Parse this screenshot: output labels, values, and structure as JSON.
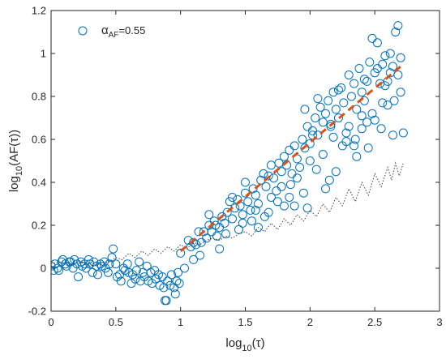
{
  "chart_data": {
    "type": "scatter",
    "xlabel": {
      "base": "log",
      "sub": "10",
      "paren": "(τ)"
    },
    "ylabel": {
      "base": "log",
      "sub": "10",
      "paren": "(AF(τ))"
    },
    "xlim": [
      0,
      3
    ],
    "ylim": [
      -0.2,
      1.2
    ],
    "xticks": [
      0,
      0.5,
      1,
      1.5,
      2,
      2.5,
      3
    ],
    "xtick_labels": [
      "0",
      "0.5",
      "1",
      "1.5",
      "2",
      "2.5",
      "3"
    ],
    "yticks": [
      -0.2,
      0,
      0.2,
      0.4,
      0.6,
      0.8,
      1,
      1.2
    ],
    "ytick_labels": [
      "-0.2",
      "0",
      "0.2",
      "0.4",
      "0.6",
      "0.8",
      "1",
      "1.2"
    ],
    "grid": false,
    "legend": {
      "position": "top-left",
      "entries": [
        {
          "symbol": "α",
          "sub": "AF",
          "text": "=0.55",
          "marker": "open-circle",
          "color": "#0072BD"
        }
      ]
    },
    "colors": {
      "markers": "#0072BD",
      "fit_line": "#D95319",
      "reference": "#404040",
      "axes": "#262626"
    },
    "series": [
      {
        "marker": "open-circle",
        "color": "#0072BD",
        "points": [
          [
            0.0,
            0.01
          ],
          [
            0.02,
            -0.01
          ],
          [
            0.03,
            0.02
          ],
          [
            0.05,
            0.0
          ],
          [
            0.06,
            -0.01
          ],
          [
            0.08,
            0.03
          ],
          [
            0.09,
            0.04
          ],
          [
            0.11,
            0.02
          ],
          [
            0.12,
            0.01
          ],
          [
            0.14,
            0.03
          ],
          [
            0.15,
            0.03
          ],
          [
            0.17,
            0.0
          ],
          [
            0.18,
            0.04
          ],
          [
            0.2,
            0.02
          ],
          [
            0.21,
            -0.04
          ],
          [
            0.23,
            0.03
          ],
          [
            0.24,
            0.01
          ],
          [
            0.26,
            0.02
          ],
          [
            0.27,
            0.0
          ],
          [
            0.29,
            0.04
          ],
          [
            0.3,
            0.02
          ],
          [
            0.32,
            -0.02
          ],
          [
            0.33,
            0.03
          ],
          [
            0.35,
            0.01
          ],
          [
            0.36,
            -0.03
          ],
          [
            0.38,
            0.02
          ],
          [
            0.39,
            0.01
          ],
          [
            0.41,
            0.03
          ],
          [
            0.42,
            0.0
          ],
          [
            0.44,
            -0.02
          ],
          [
            0.45,
            0.02
          ],
          [
            0.47,
            0.05
          ],
          [
            0.48,
            0.09
          ],
          [
            0.5,
            0.02
          ],
          [
            0.51,
            -0.04
          ],
          [
            0.53,
            -0.03
          ],
          [
            0.54,
            -0.06
          ],
          [
            0.56,
            0.0
          ],
          [
            0.57,
            -0.01
          ],
          [
            0.59,
            0.02
          ],
          [
            0.6,
            -0.02
          ],
          [
            0.62,
            -0.07
          ],
          [
            0.63,
            -0.03
          ],
          [
            0.65,
            -0.05
          ],
          [
            0.66,
            -0.01
          ],
          [
            0.68,
            0.03
          ],
          [
            0.69,
            -0.06
          ],
          [
            0.71,
            -0.02
          ],
          [
            0.72,
            -0.04
          ],
          [
            0.74,
            0.01
          ],
          [
            0.75,
            -0.06
          ],
          [
            0.77,
            -0.02
          ],
          [
            0.78,
            -0.07
          ],
          [
            0.8,
            -0.01
          ],
          [
            0.81,
            -0.05
          ],
          [
            0.83,
            -0.03
          ],
          [
            0.84,
            -0.08
          ],
          [
            0.86,
            -0.04
          ],
          [
            0.87,
            -0.09
          ],
          [
            0.88,
            -0.15
          ],
          [
            0.89,
            -0.15
          ],
          [
            0.9,
            -0.06
          ],
          [
            0.92,
            -0.08
          ],
          [
            0.93,
            -0.03
          ],
          [
            0.95,
            -0.09
          ],
          [
            0.96,
            -0.12
          ],
          [
            0.97,
            -0.06
          ],
          [
            0.98,
            -0.02
          ],
          [
            0.99,
            -0.07
          ],
          [
            1.0,
            0.07
          ],
          [
            1.03,
            0.0
          ],
          [
            1.06,
            0.13
          ],
          [
            1.08,
            0.1
          ],
          [
            1.1,
            0.04
          ],
          [
            1.12,
            0.11
          ],
          [
            1.14,
            0.17
          ],
          [
            1.16,
            0.12
          ],
          [
            1.18,
            0.17
          ],
          [
            1.2,
            0.14
          ],
          [
            1.22,
            0.2
          ],
          [
            1.24,
            0.17
          ],
          [
            1.26,
            0.22
          ],
          [
            1.28,
            0.15
          ],
          [
            1.3,
            0.19
          ],
          [
            1.32,
            0.24
          ],
          [
            1.34,
            0.21
          ],
          [
            1.36,
            0.26
          ],
          [
            1.38,
            0.31
          ],
          [
            1.4,
            0.33
          ],
          [
            1.42,
            0.28
          ],
          [
            1.44,
            0.32
          ],
          [
            1.46,
            0.29
          ],
          [
            1.48,
            0.25
          ],
          [
            1.5,
            0.35
          ],
          [
            1.52,
            0.31
          ],
          [
            1.54,
            0.27
          ],
          [
            1.56,
            0.37
          ],
          [
            1.58,
            0.34
          ],
          [
            1.6,
            0.3
          ],
          [
            1.62,
            0.41
          ],
          [
            1.64,
            0.44
          ],
          [
            1.66,
            0.38
          ],
          [
            1.68,
            0.43
          ],
          [
            1.7,
            0.48
          ],
          [
            1.72,
            0.42
          ],
          [
            1.74,
            0.36
          ],
          [
            1.76,
            0.49
          ],
          [
            1.78,
            0.45
          ],
          [
            1.8,
            0.52
          ],
          [
            1.82,
            0.48
          ],
          [
            1.84,
            0.55
          ],
          [
            1.86,
            0.44
          ],
          [
            1.88,
            0.57
          ],
          [
            1.9,
            0.51
          ],
          [
            1.92,
            0.47
          ],
          [
            1.94,
            0.6
          ],
          [
            1.96,
            0.56
          ],
          [
            1.98,
            0.66
          ],
          [
            2.0,
            0.58
          ],
          [
            2.02,
            0.64
          ],
          [
            2.04,
            0.7
          ],
          [
            2.06,
            0.62
          ],
          [
            2.08,
            0.75
          ],
          [
            2.1,
            0.68
          ],
          [
            2.12,
            0.72
          ],
          [
            2.14,
            0.78
          ],
          [
            2.16,
            0.66
          ],
          [
            2.18,
            0.82
          ],
          [
            2.2,
            0.74
          ],
          [
            2.22,
            0.7
          ],
          [
            2.24,
            0.84
          ],
          [
            2.26,
            0.77
          ],
          [
            2.28,
            0.63
          ],
          [
            2.3,
            0.9
          ],
          [
            2.32,
            0.8
          ],
          [
            2.34,
            0.86
          ],
          [
            2.36,
            0.74
          ],
          [
            2.38,
            0.93
          ],
          [
            2.4,
            0.82
          ],
          [
            2.42,
            0.88
          ],
          [
            2.44,
            0.68
          ],
          [
            2.46,
            0.96
          ],
          [
            2.48,
            1.07
          ],
          [
            2.5,
            0.91
          ],
          [
            2.52,
            1.05
          ],
          [
            2.54,
            0.86
          ],
          [
            2.56,
            0.95
          ],
          [
            2.58,
            0.99
          ],
          [
            2.6,
            0.87
          ],
          [
            2.62,
            1.0
          ],
          [
            2.64,
            0.94
          ],
          [
            2.66,
            1.1
          ],
          [
            2.68,
            1.13
          ],
          [
            2.7,
            0.98
          ],
          [
            2.72,
            0.63
          ],
          [
            1.1,
            0.12
          ],
          [
            1.15,
            0.06
          ],
          [
            1.27,
            0.2
          ],
          [
            1.35,
            0.16
          ],
          [
            1.45,
            0.18
          ],
          [
            1.55,
            0.22
          ],
          [
            1.65,
            0.24
          ],
          [
            1.75,
            0.31
          ],
          [
            1.85,
            0.39
          ],
          [
            1.95,
            0.35
          ],
          [
            2.05,
            0.46
          ],
          [
            2.15,
            0.41
          ],
          [
            2.25,
            0.57
          ],
          [
            2.35,
            0.6
          ],
          [
            2.45,
            0.56
          ],
          [
            2.55,
            0.65
          ],
          [
            2.65,
            0.78
          ],
          [
            1.22,
            0.25
          ],
          [
            1.48,
            0.21
          ],
          [
            1.58,
            0.27
          ],
          [
            1.7,
            0.33
          ],
          [
            1.8,
            0.29
          ],
          [
            1.9,
            0.42
          ],
          [
            2.0,
            0.5
          ],
          [
            2.1,
            0.53
          ],
          [
            2.2,
            0.45
          ],
          [
            2.3,
            0.66
          ],
          [
            2.4,
            0.71
          ],
          [
            2.5,
            0.69
          ],
          [
            2.6,
            0.76
          ],
          [
            2.7,
            0.82
          ],
          [
            1.3,
            0.09
          ],
          [
            1.4,
            0.23
          ],
          [
            1.6,
            0.19
          ],
          [
            1.88,
            0.29
          ],
          [
            2.12,
            0.37
          ],
          [
            2.36,
            0.52
          ],
          [
            2.58,
            0.85
          ],
          [
            1.96,
            0.74
          ],
          [
            2.06,
            0.79
          ],
          [
            2.22,
            0.83
          ],
          [
            2.34,
            0.57
          ],
          [
            2.48,
            0.72
          ],
          [
            2.62,
            0.91
          ],
          [
            1.5,
            0.4
          ],
          [
            1.68,
            0.26
          ],
          [
            1.78,
            0.38
          ],
          [
            1.98,
            0.28
          ],
          [
            2.18,
            0.61
          ],
          [
            2.28,
            0.59
          ],
          [
            2.44,
            0.87
          ],
          [
            2.56,
            0.77
          ],
          [
            2.68,
            0.9
          ],
          [
            1.84,
            0.33
          ],
          [
            2.02,
            0.62
          ],
          [
            2.16,
            0.67
          ],
          [
            2.4,
            0.65
          ],
          [
            2.52,
            0.93
          ],
          [
            2.64,
            0.62
          ],
          [
            2.42,
            0.78
          ]
        ]
      },
      {
        "style": "dashed-line",
        "color": "#D95319",
        "points": [
          [
            1.0,
            0.08
          ],
          [
            2.72,
            0.95
          ]
        ]
      },
      {
        "style": "dotted-line",
        "color": "#404040",
        "points": [
          [
            0.0,
            0.02
          ],
          [
            0.08,
            0.03
          ],
          [
            0.15,
            0.02
          ],
          [
            0.22,
            0.03
          ],
          [
            0.3,
            0.01
          ],
          [
            0.38,
            0.02
          ],
          [
            0.45,
            0.03
          ],
          [
            0.5,
            0.05
          ],
          [
            0.55,
            0.04
          ],
          [
            0.6,
            0.07
          ],
          [
            0.65,
            0.05
          ],
          [
            0.7,
            0.08
          ],
          [
            0.75,
            0.06
          ],
          [
            0.8,
            0.09
          ],
          [
            0.85,
            0.07
          ],
          [
            0.9,
            0.1
          ],
          [
            0.95,
            0.08
          ],
          [
            1.0,
            0.11
          ],
          [
            1.05,
            0.09
          ],
          [
            1.1,
            0.12
          ],
          [
            1.15,
            0.11
          ],
          [
            1.2,
            0.13
          ],
          [
            1.25,
            0.14
          ],
          [
            1.3,
            0.13
          ],
          [
            1.35,
            0.15
          ],
          [
            1.4,
            0.14
          ],
          [
            1.45,
            0.16
          ],
          [
            1.5,
            0.17
          ],
          [
            1.55,
            0.15
          ],
          [
            1.6,
            0.19
          ],
          [
            1.65,
            0.17
          ],
          [
            1.7,
            0.21
          ],
          [
            1.75,
            0.18
          ],
          [
            1.8,
            0.23
          ],
          [
            1.85,
            0.2
          ],
          [
            1.9,
            0.25
          ],
          [
            1.95,
            0.22
          ],
          [
            2.0,
            0.27
          ],
          [
            2.05,
            0.24
          ],
          [
            2.1,
            0.3
          ],
          [
            2.15,
            0.26
          ],
          [
            2.2,
            0.33
          ],
          [
            2.25,
            0.29
          ],
          [
            2.3,
            0.37
          ],
          [
            2.35,
            0.31
          ],
          [
            2.4,
            0.4
          ],
          [
            2.45,
            0.34
          ],
          [
            2.5,
            0.44
          ],
          [
            2.55,
            0.38
          ],
          [
            2.6,
            0.47
          ],
          [
            2.63,
            0.41
          ],
          [
            2.66,
            0.49
          ],
          [
            2.69,
            0.43
          ],
          [
            2.72,
            0.49
          ]
        ]
      }
    ]
  }
}
